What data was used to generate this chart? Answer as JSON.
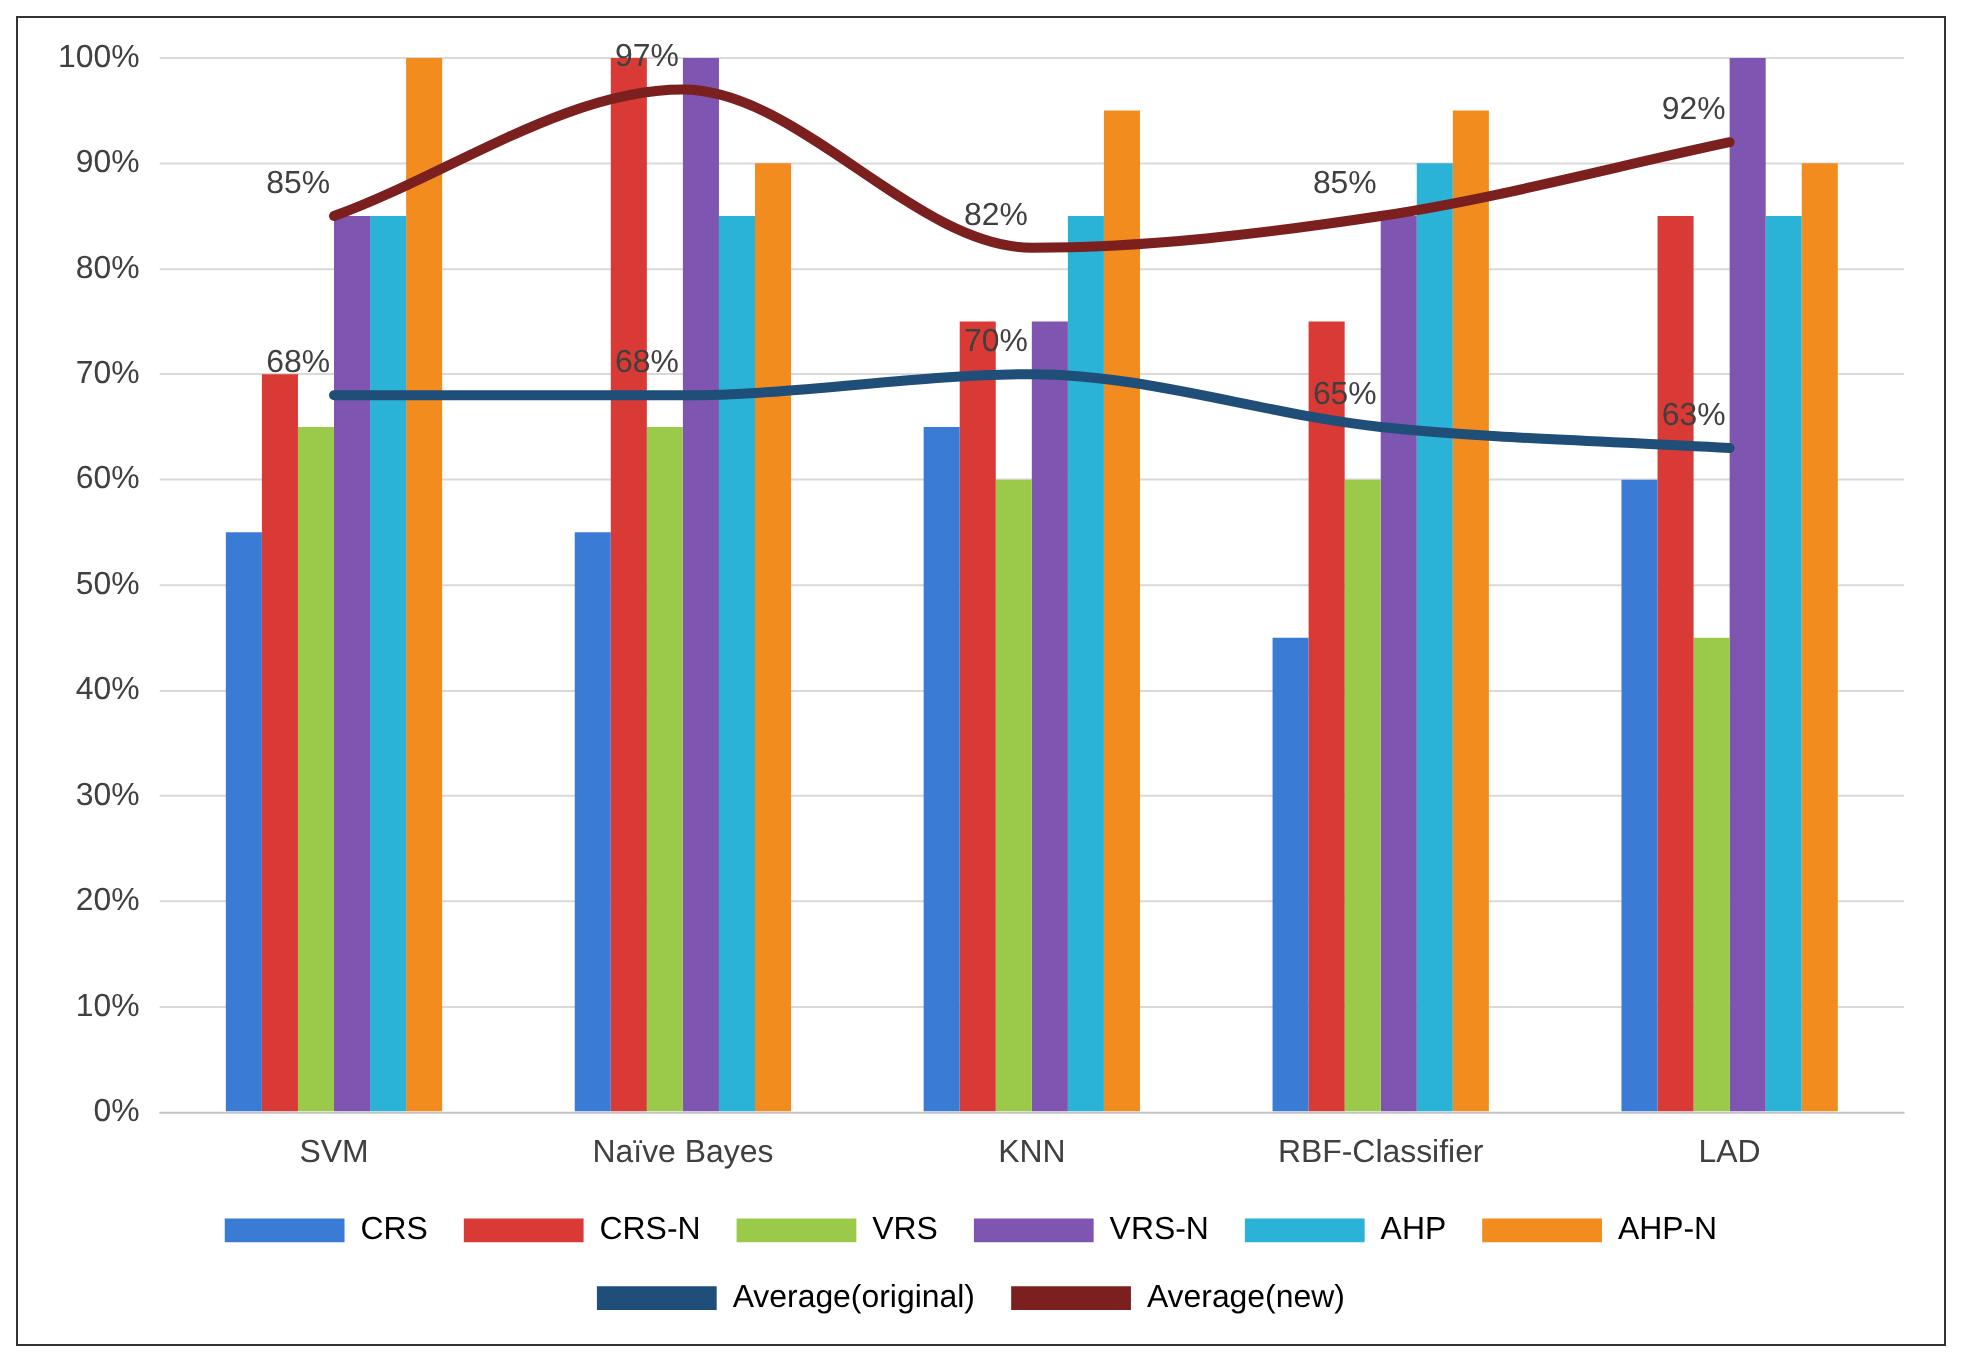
{
  "chart_data": {
    "type": "bar",
    "categories": [
      "SVM",
      "Naïve Bayes",
      "KNN",
      "RBF-Classifier",
      "LAD"
    ],
    "series": [
      {
        "name": "CRS",
        "color": "#3a7bd5",
        "values": [
          55,
          55,
          65,
          45,
          60
        ]
      },
      {
        "name": "CRS-N",
        "color": "#d93a35",
        "values": [
          70,
          100,
          75,
          75,
          85
        ]
      },
      {
        "name": "VRS",
        "color": "#9bc94a",
        "values": [
          65,
          65,
          60,
          60,
          45
        ]
      },
      {
        "name": "VRS-N",
        "color": "#7e55b0",
        "values": [
          85,
          100,
          75,
          85,
          100
        ]
      },
      {
        "name": "AHP",
        "color": "#2ab3d6",
        "values": [
          85,
          85,
          85,
          90,
          85
        ]
      },
      {
        "name": "AHP-N",
        "color": "#f28c1e",
        "values": [
          100,
          90,
          95,
          95,
          90
        ]
      },
      {
        "name": "Average(original)",
        "type": "line",
        "color": "#1f4e79",
        "values": [
          68,
          68,
          70,
          65,
          63
        ],
        "value_labels": [
          "68%",
          "68%",
          "70%",
          "65%",
          "63%"
        ]
      },
      {
        "name": "Average(new)",
        "type": "line",
        "color": "#7b1f1f",
        "values": [
          85,
          97,
          82,
          85,
          92
        ],
        "value_labels": [
          "85%",
          "97%",
          "82%",
          "85%",
          "92%"
        ]
      }
    ],
    "ylim": [
      0,
      100
    ],
    "yticks": [
      {
        "value": 0,
        "label": "0%"
      },
      {
        "value": 10,
        "label": "10%"
      },
      {
        "value": 20,
        "label": "20%"
      },
      {
        "value": 30,
        "label": "30%"
      },
      {
        "value": 40,
        "label": "40%"
      },
      {
        "value": 50,
        "label": "50%"
      },
      {
        "value": 60,
        "label": "60%"
      },
      {
        "value": 70,
        "label": "70%"
      },
      {
        "value": 80,
        "label": "80%"
      },
      {
        "value": 90,
        "label": "90%"
      },
      {
        "value": 100,
        "label": "100%"
      }
    ],
    "grid": "y",
    "legend": "bottom",
    "marker": "none",
    "line_style": "solid"
  }
}
